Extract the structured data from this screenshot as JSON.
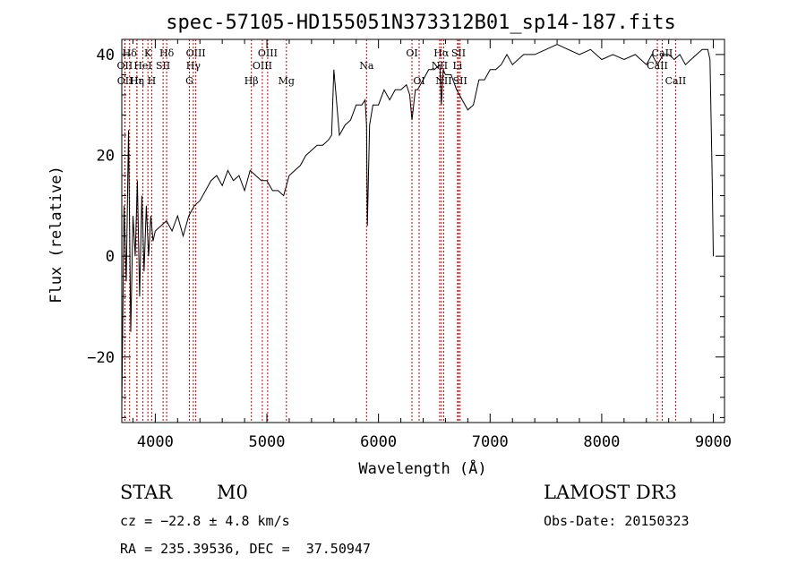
{
  "chart_data": {
    "type": "line",
    "title": "spec-57105-HD155051N373312B01_sp14-187.fits",
    "xlabel": "Wavelength (Å)",
    "ylabel": "Flux (relative)",
    "xlim": [
      3700,
      9100
    ],
    "ylim": [
      -33,
      43
    ],
    "xticks": [
      4000,
      5000,
      6000,
      7000,
      8000,
      9000
    ],
    "xtick_labels": [
      "4000",
      "5000",
      "6000",
      "7000",
      "8000",
      "9000"
    ],
    "yticks": [
      -20,
      0,
      20,
      40
    ],
    "ytick_labels": [
      "−20",
      "0",
      "20",
      "40"
    ],
    "grid": false,
    "line_color": "#000000",
    "marker_color": "#cc0000",
    "series": [
      {
        "x": [
          3700,
          3720,
          3740,
          3760,
          3780,
          3800,
          3820,
          3840,
          3860,
          3880,
          3900,
          3920,
          3940,
          3960,
          3980,
          4000,
          4050,
          4100,
          4150,
          4200,
          4250,
          4300,
          4350,
          4400,
          4450,
          4500,
          4550,
          4600,
          4650,
          4700,
          4750,
          4800,
          4850,
          4900,
          4950,
          5000,
          5050,
          5100,
          5150,
          5200,
          5250,
          5300,
          5350,
          5400,
          5450,
          5500,
          5550,
          5580,
          5600,
          5650,
          5700,
          5750,
          5800,
          5850,
          5880,
          5893,
          5900,
          5920,
          5950,
          6000,
          6050,
          6100,
          6150,
          6200,
          6250,
          6280,
          6300,
          6330,
          6350,
          6400,
          6450,
          6500,
          6550,
          6563,
          6580,
          6600,
          6650,
          6700,
          6750,
          6800,
          6850,
          6900,
          6950,
          7000,
          7050,
          7100,
          7150,
          7200,
          7300,
          7400,
          7500,
          7600,
          7700,
          7800,
          7900,
          8000,
          8100,
          8200,
          8300,
          8400,
          8450,
          8500,
          8550,
          8600,
          8650,
          8700,
          8750,
          8800,
          8850,
          8900,
          8950,
          8970,
          8990,
          9000
        ],
        "y": [
          -30,
          10,
          -5,
          25,
          -15,
          8,
          0,
          15,
          -8,
          12,
          -3,
          10,
          0,
          8,
          3,
          5,
          6,
          7,
          5,
          8,
          4,
          8,
          10,
          11,
          13,
          15,
          16,
          14,
          17,
          15,
          16,
          13,
          17,
          16,
          15,
          15,
          13,
          13,
          12,
          16,
          17,
          18,
          20,
          21,
          22,
          22,
          23,
          24,
          37,
          24,
          26,
          27,
          30,
          30,
          31,
          26,
          6,
          26,
          30,
          30,
          33,
          31,
          33,
          33,
          34,
          32,
          27,
          33,
          33,
          35,
          37,
          37,
          38,
          30,
          37,
          36,
          36,
          33,
          31,
          29,
          30,
          35,
          35,
          37,
          37,
          38,
          40,
          38,
          40,
          40,
          41,
          42,
          41,
          40,
          41,
          39,
          40,
          39,
          40,
          38,
          40,
          38,
          40,
          40,
          39,
          40,
          38,
          39,
          40,
          41,
          41,
          39,
          15,
          0
        ]
      }
    ],
    "lines": [
      {
        "name": "Hδ",
        "x": 3770,
        "row": 1
      },
      {
        "name": "OII",
        "x": 3727,
        "row": 2
      },
      {
        "name": "OII",
        "x": 3729,
        "row": 3
      },
      {
        "name": "K",
        "x": 3934,
        "row": 1
      },
      {
        "name": "HeI",
        "x": 3889,
        "row": 2
      },
      {
        "name": "Hε",
        "x": 3835,
        "row": 3
      },
      {
        "name": "Hη",
        "x": 3836,
        "row": 3
      },
      {
        "name": "H",
        "x": 3968,
        "row": 3
      },
      {
        "name": "SII",
        "x": 4070,
        "row": 2
      },
      {
        "name": "Hδ",
        "x": 4102,
        "row": 1
      },
      {
        "name": "OIII",
        "x": 4363,
        "row": 1
      },
      {
        "name": "Hγ",
        "x": 4341,
        "row": 2
      },
      {
        "name": "G",
        "x": 4306,
        "row": 3
      },
      {
        "name": "Hβ",
        "x": 4861,
        "row": 3
      },
      {
        "name": "OIII",
        "x": 4959,
        "row": 2
      },
      {
        "name": "OIII",
        "x": 5007,
        "row": 1
      },
      {
        "name": "Mg",
        "x": 5175,
        "row": 3
      },
      {
        "name": "Na",
        "x": 5893,
        "row": 2
      },
      {
        "name": "OI",
        "x": 6300,
        "row": 1
      },
      {
        "name": "OI",
        "x": 6364,
        "row": 3
      },
      {
        "name": "Hα",
        "x": 6563,
        "row": 1
      },
      {
        "name": "NII",
        "x": 6548,
        "row": 2
      },
      {
        "name": "NII",
        "x": 6584,
        "row": 3
      },
      {
        "name": "Li",
        "x": 6708,
        "row": 2
      },
      {
        "name": "SII",
        "x": 6717,
        "row": 1
      },
      {
        "name": "SII",
        "x": 6731,
        "row": 3
      },
      {
        "name": "CaII",
        "x": 8498,
        "row": 2
      },
      {
        "name": "CaII",
        "x": 8542,
        "row": 1
      },
      {
        "name": "CaII",
        "x": 8662,
        "row": 3
      }
    ]
  },
  "info": {
    "class": "STAR",
    "subclass": "M0",
    "survey": "LAMOST DR3",
    "cz": "cz = −22.8 ± 4.8 km/s",
    "obsdate": "Obs-Date: 20150323",
    "radec": "RA = 235.39536, DEC =  37.50947"
  }
}
